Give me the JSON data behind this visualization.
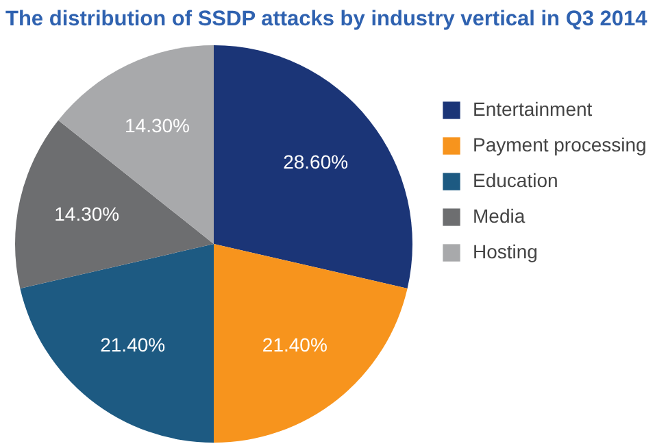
{
  "chart_data": {
    "type": "pie",
    "title": "The distribution of SSDP attacks by industry vertical in Q3 2014",
    "categories": [
      "Entertainment",
      "Payment processing",
      "Education",
      "Media",
      "Hosting"
    ],
    "values": [
      28.6,
      21.4,
      21.4,
      14.3,
      14.3
    ],
    "colors": [
      "#1b3577",
      "#f7941d",
      "#1d5a82",
      "#6d6e70",
      "#a8a9ab"
    ],
    "value_labels": [
      "28.60%",
      "21.40%",
      "21.40%",
      "14.30%",
      "14.30%"
    ],
    "legend": "right"
  }
}
